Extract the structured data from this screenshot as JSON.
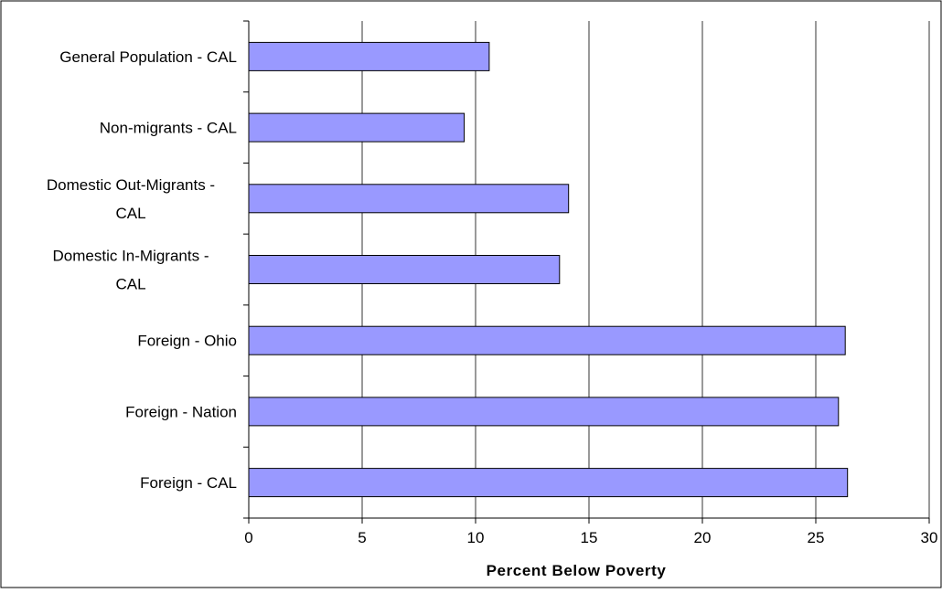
{
  "chart_data": {
    "type": "bar",
    "orientation": "horizontal",
    "categories": [
      "General Population - CAL",
      "Non-migrants - CAL",
      "Domestic Out-Migrants - CAL",
      "Domestic In-Migrants - CAL",
      "Foreign - Ohio",
      "Foreign - Nation",
      "Foreign - CAL"
    ],
    "category_label_lines": [
      [
        "General Population - CAL"
      ],
      [
        "Non-migrants - CAL"
      ],
      [
        "Domestic Out-Migrants -",
        "CAL"
      ],
      [
        "Domestic In-Migrants -",
        "CAL"
      ],
      [
        "Foreign - Ohio"
      ],
      [
        "Foreign - Nation"
      ],
      [
        "Foreign - CAL"
      ]
    ],
    "values": [
      10.6,
      9.5,
      14.1,
      13.7,
      26.3,
      26.0,
      26.4
    ],
    "title": "",
    "xlabel": "Percent Below Poverty",
    "ylabel": "",
    "xlim": [
      0,
      30
    ],
    "x_ticks": [
      0,
      5,
      10,
      15,
      20,
      25,
      30
    ],
    "grid": "vertical",
    "legend": "none",
    "colors": {
      "bar_fill": "#9999ff",
      "bar_stroke": "#000000",
      "gridline": "#000000",
      "axis": "#000000",
      "frame": "#000000",
      "background": "#ffffff"
    }
  }
}
